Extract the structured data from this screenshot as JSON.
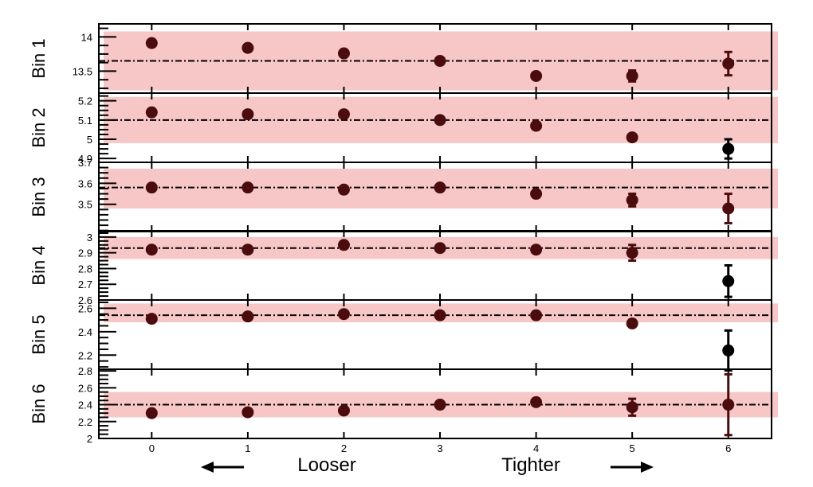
{
  "chart_data": {
    "type": "scatter",
    "x": [
      0,
      1,
      2,
      3,
      4,
      5,
      6
    ],
    "xlim": [
      -0.55,
      6.45
    ],
    "x_annotations": {
      "left": "Looser",
      "right": "Tighter"
    },
    "band_color": "#f7c6c6",
    "reference_line_color": "#000000",
    "marker_color": "#4a0c0c",
    "panels": [
      {
        "label": "Bin 1",
        "ylim": [
          13.18,
          14.19
        ],
        "yticks": [
          "13.5",
          "14"
        ],
        "ytick_values": [
          13.5,
          14.0
        ],
        "reference": 13.65,
        "band": [
          13.22,
          14.08
        ],
        "values": [
          13.91,
          13.84,
          13.76,
          13.65,
          13.43,
          13.43,
          13.61
        ],
        "errors": [
          0,
          0,
          0,
          0,
          0,
          0.08,
          0.17
        ],
        "marker_colors": [
          "#4a0c0c",
          "#4a0c0c",
          "#4a0c0c",
          "#4a0c0c",
          "#4a0c0c",
          "#4a0c0c",
          "#4a0c0c"
        ]
      },
      {
        "label": "Bin 2",
        "ylim": [
          4.88,
          5.24
        ],
        "yticks": [
          "4.9",
          "5",
          "5.1",
          "5.2"
        ],
        "ytick_values": [
          4.9,
          5.0,
          5.1,
          5.2
        ],
        "reference": 5.1,
        "band": [
          4.98,
          5.22
        ],
        "values": [
          5.14,
          5.13,
          5.13,
          5.1,
          5.07,
          5.01,
          4.95
        ],
        "errors": [
          0,
          0,
          0,
          0,
          0,
          0,
          0.05
        ],
        "marker_colors": [
          "#4a0c0c",
          "#4a0c0c",
          "#4a0c0c",
          "#4a0c0c",
          "#4a0c0c",
          "#4a0c0c",
          "#000000"
        ]
      },
      {
        "label": "Bin 3",
        "ylim": [
          3.37,
          3.7
        ],
        "yticks": [
          "3.5",
          "3.6",
          "3.7"
        ],
        "ytick_values": [
          3.5,
          3.6,
          3.7
        ],
        "reference": 3.58,
        "band": [
          3.48,
          3.67
        ],
        "values": [
          3.58,
          3.58,
          3.57,
          3.58,
          3.55,
          3.52,
          3.48
        ],
        "errors": [
          0,
          0,
          0,
          0,
          0,
          0.03,
          0.07
        ],
        "marker_colors": [
          "#4a0c0c",
          "#4a0c0c",
          "#4a0c0c",
          "#4a0c0c",
          "#4a0c0c",
          "#4a0c0c",
          "#4a0c0c"
        ]
      },
      {
        "label": "Bin 4",
        "ylim": [
          2.6,
          3.04
        ],
        "yticks": [
          "2.6",
          "2.7",
          "2.8",
          "2.9",
          "3"
        ],
        "ytick_values": [
          2.6,
          2.7,
          2.8,
          2.9,
          3.0
        ],
        "reference": 2.93,
        "band": [
          2.86,
          3.0
        ],
        "values": [
          2.92,
          2.92,
          2.95,
          2.93,
          2.92,
          2.9,
          2.72
        ],
        "errors": [
          0,
          0,
          0,
          0,
          0,
          0.05,
          0.1
        ],
        "marker_colors": [
          "#4a0c0c",
          "#4a0c0c",
          "#4a0c0c",
          "#4a0c0c",
          "#4a0c0c",
          "#4a0c0c",
          "#000000"
        ]
      },
      {
        "label": "Bin 5",
        "ylim": [
          2.08,
          2.67
        ],
        "yticks": [
          "2.2",
          "2.4",
          "2.6"
        ],
        "ytick_values": [
          2.2,
          2.4,
          2.6
        ],
        "reference": 2.54,
        "band": [
          2.48,
          2.64
        ],
        "values": [
          2.51,
          2.53,
          2.55,
          2.54,
          2.54,
          2.47,
          2.24
        ],
        "errors": [
          0,
          0,
          0,
          0,
          0,
          0.03,
          0.17
        ],
        "marker_colors": [
          "#4a0c0c",
          "#4a0c0c",
          "#4a0c0c",
          "#4a0c0c",
          "#4a0c0c",
          "#4a0c0c",
          "#000000"
        ]
      },
      {
        "label": "Bin 6",
        "ylim": [
          2.0,
          2.82
        ],
        "yticks": [
          "2",
          "2.2",
          "2.4",
          "2.6",
          "2.8"
        ],
        "ytick_values": [
          2.0,
          2.2,
          2.4,
          2.6,
          2.8
        ],
        "reference": 2.4,
        "band": [
          2.25,
          2.55
        ],
        "values": [
          2.3,
          2.31,
          2.33,
          2.4,
          2.43,
          2.37,
          2.4
        ],
        "errors": [
          0,
          0,
          0,
          0,
          0,
          0.1,
          0.36
        ],
        "marker_colors": [
          "#4a0c0c",
          "#4a0c0c",
          "#4a0c0c",
          "#4a0c0c",
          "#4a0c0c",
          "#4a0c0c",
          "#4a0c0c"
        ]
      }
    ]
  }
}
